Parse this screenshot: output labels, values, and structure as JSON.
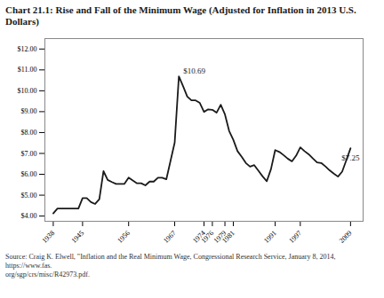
{
  "chart_data": {
    "type": "line",
    "title": "Chart 21.1: Rise and Fall of the Minimum Wage (Adjusted for Inflation in 2013 U.S. Dollars)",
    "source": "Source: Craig K. Elwell, \"Inflation and the Real Minimum Wage, Congressional Research Service, January 8, 2014, https://www.fas.\norg/sgp/crs/misc/R42973.pdf.",
    "x": [
      1938,
      1939,
      1940,
      1941,
      1942,
      1943,
      1944,
      1945,
      1946,
      1947,
      1948,
      1949,
      1950,
      1951,
      1952,
      1953,
      1954,
      1955,
      1956,
      1957,
      1958,
      1959,
      1960,
      1961,
      1962,
      1963,
      1964,
      1965,
      1966,
      1967,
      1968,
      1969,
      1970,
      1971,
      1972,
      1973,
      1974,
      1975,
      1976,
      1977,
      1978,
      1979,
      1980,
      1981,
      1982,
      1983,
      1984,
      1985,
      1986,
      1987,
      1988,
      1989,
      1990,
      1991,
      1992,
      1993,
      1994,
      1995,
      1996,
      1997,
      1998,
      1999,
      2000,
      2001,
      2002,
      2003,
      2004,
      2005,
      2006,
      2007,
      2008,
      2009
    ],
    "values": [
      4.13,
      4.36,
      4.36,
      4.36,
      4.36,
      4.36,
      4.36,
      4.86,
      4.86,
      4.67,
      4.58,
      4.81,
      6.15,
      5.73,
      5.63,
      5.54,
      5.54,
      5.54,
      5.84,
      5.7,
      5.57,
      5.57,
      5.47,
      5.65,
      5.65,
      5.84,
      5.84,
      5.76,
      6.64,
      7.52,
      10.69,
      10.22,
      9.72,
      9.54,
      9.54,
      9.42,
      8.99,
      9.11,
      9.09,
      8.95,
      9.33,
      8.87,
      8.08,
      7.65,
      7.11,
      6.84,
      6.54,
      6.37,
      6.44,
      6.17,
      5.9,
      5.67,
      6.25,
      7.16,
      7.07,
      6.92,
      6.75,
      6.62,
      6.89,
      7.29,
      7.11,
      6.96,
      6.76,
      6.57,
      6.54,
      6.38,
      6.19,
      6.03,
      5.89,
      6.13,
      6.68,
      7.25
    ],
    "color": "#1a1a1a",
    "xlim": [
      1936,
      2012
    ],
    "xticks": [
      1938,
      1945,
      1956,
      1967,
      1974,
      1976,
      1979,
      1981,
      1991,
      1997,
      2009
    ],
    "ylim": [
      3.75,
      12.5
    ],
    "yticks": [
      {
        "value": 4.0,
        "label": "$4.00"
      },
      {
        "value": 5.0,
        "label": "$5.00"
      },
      {
        "value": 6.0,
        "label": "$6.00"
      },
      {
        "value": 7.0,
        "label": "$7.00"
      },
      {
        "value": 8.0,
        "label": "$8.00"
      },
      {
        "value": 9.0,
        "label": "$9.00"
      },
      {
        "value": 10.0,
        "label": "$10.00"
      },
      {
        "value": 11.0,
        "label": "$11.00"
      },
      {
        "value": 12.0,
        "label": "$12.00"
      }
    ],
    "grid": false,
    "annotations": [
      {
        "text": "$10.69",
        "x": 1968,
        "y": 10.69
      },
      {
        "text": "$7.25",
        "x": 2009,
        "y": 7.25
      }
    ]
  }
}
